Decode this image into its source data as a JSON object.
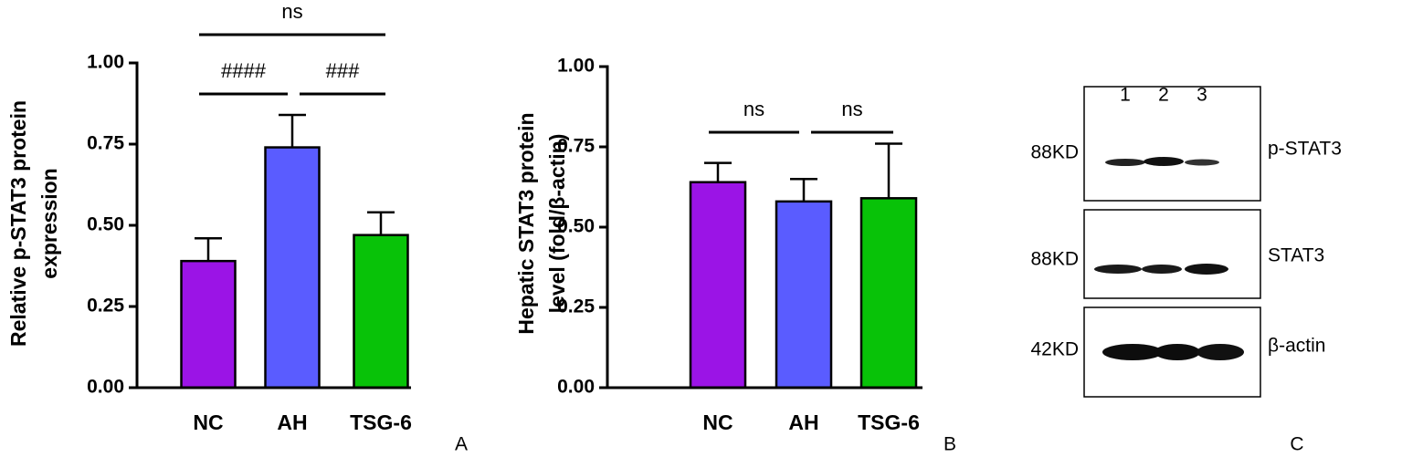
{
  "chart_data": [
    {
      "type": "bar",
      "ylabel": [
        "Relative p-STAT3 protein",
        "expression"
      ],
      "categories": [
        "NC",
        "AH",
        "TSG-6"
      ],
      "values": [
        0.39,
        0.74,
        0.47
      ],
      "errors": [
        0.07,
        0.1,
        0.07
      ],
      "colors": [
        "#9b14e6",
        "#5a5cff",
        "#08c208"
      ],
      "ylim": [
        0,
        1
      ],
      "yticks": [
        {
          "value": 0,
          "label": "0.00"
        },
        {
          "value": 0.25,
          "label": "0.25"
        },
        {
          "value": 0.5,
          "label": "0.50"
        },
        {
          "value": 0.75,
          "label": "0.75"
        },
        {
          "value": 1,
          "label": "1.00"
        }
      ],
      "comparisons": [
        {
          "label": "ns",
          "groups": [
            "NC",
            "TSG-6"
          ]
        },
        {
          "label": "####",
          "groups": [
            "NC",
            "AH"
          ]
        },
        {
          "label": "###",
          "groups": [
            "AH",
            "TSG-6"
          ]
        }
      ],
      "panel": "A"
    },
    {
      "type": "bar",
      "ylabel": [
        "Hepatic STAT3 protein",
        "level (fold/β-actin)"
      ],
      "categories": [
        "NC",
        "AH",
        "TSG-6"
      ],
      "values": [
        0.64,
        0.58,
        0.59
      ],
      "errors": [
        0.06,
        0.07,
        0.17
      ],
      "colors": [
        "#9b14e6",
        "#5a5cff",
        "#08c208"
      ],
      "ylim": [
        0,
        1
      ],
      "yticks": [
        {
          "value": 0,
          "label": "0.00"
        },
        {
          "value": 0.25,
          "label": "0.25"
        },
        {
          "value": 0.5,
          "label": "0.50"
        },
        {
          "value": 0.75,
          "label": "0.75"
        },
        {
          "value": 1,
          "label": "1.00"
        }
      ],
      "comparisons": [
        {
          "label": "ns",
          "groups": [
            "NC",
            "AH"
          ]
        },
        {
          "label": "ns",
          "groups": [
            "AH",
            "TSG-6"
          ]
        }
      ],
      "panel": "B"
    }
  ],
  "blot": {
    "lanes": [
      "1",
      "2",
      "3"
    ],
    "rows": [
      {
        "size": "88KD",
        "protein": "p-STAT3"
      },
      {
        "size": "88KD",
        "protein": "STAT3"
      },
      {
        "size": "42KD",
        "protein": "β-actin"
      }
    ],
    "panel": "C"
  }
}
